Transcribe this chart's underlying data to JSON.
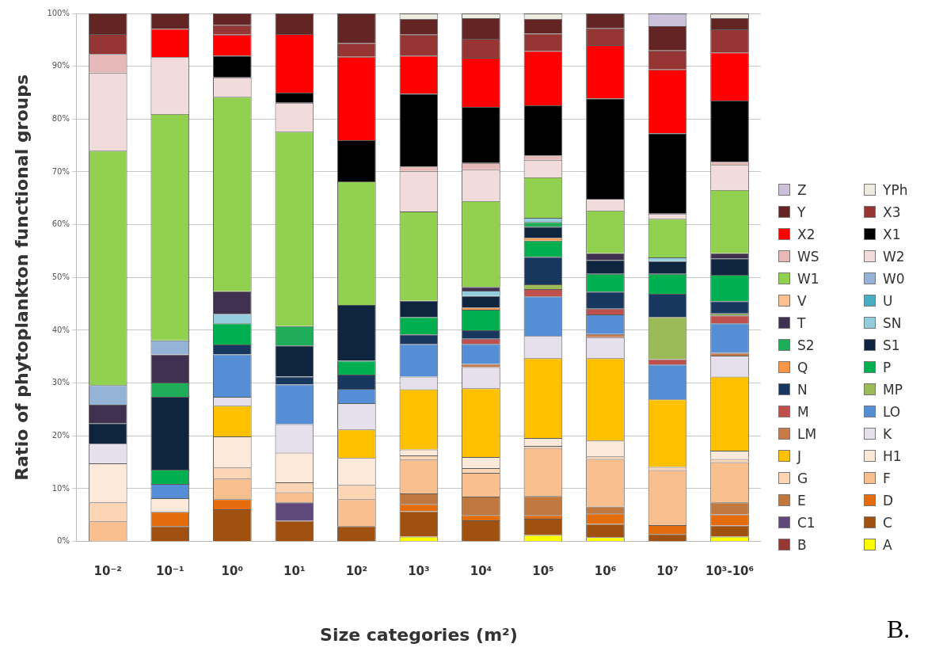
{
  "chart_data": {
    "type": "bar",
    "stacked": true,
    "ylabel": "Ratio of phytoplankton functional groups",
    "xlabel": "Size categories (m²)",
    "categories": [
      "10⁻²",
      "10⁻¹",
      "10⁰",
      "10¹",
      "10²",
      "10³",
      "10⁴",
      "10⁵",
      "10⁶",
      "10⁷",
      "10³-10⁶"
    ],
    "ylim": [
      0,
      100
    ],
    "yticks": [
      {
        "value": 0,
        "label": "0%"
      },
      {
        "value": 10,
        "label": "10%"
      },
      {
        "value": 20,
        "label": "20%"
      },
      {
        "value": 30,
        "label": "30%"
      },
      {
        "value": 40,
        "label": "40%"
      },
      {
        "value": 50,
        "label": "50%"
      },
      {
        "value": 60,
        "label": "60%"
      },
      {
        "value": 70,
        "label": "70%"
      },
      {
        "value": 80,
        "label": "80%"
      },
      {
        "value": 90,
        "label": "90%"
      },
      {
        "value": 100,
        "label": "100%"
      }
    ],
    "grid": "y",
    "legend": "right",
    "annotations": [
      "B."
    ],
    "series": [
      {
        "name": "A",
        "color": "#ffff00",
        "values": [
          0,
          0,
          0,
          0,
          0,
          0.9,
          0,
          1.2,
          0.8,
          0,
          0.9
        ]
      },
      {
        "name": "B",
        "color": "#953735",
        "values": [
          0,
          0,
          0,
          0,
          0,
          0,
          0,
          0,
          0,
          0,
          0
        ]
      },
      {
        "name": "C",
        "color": "#a0500f",
        "values": [
          0,
          2.9,
          6.1,
          3.9,
          2.9,
          4.8,
          4.0,
          3.1,
          2.5,
          1.4,
          2.1
        ]
      },
      {
        "name": "C1",
        "color": "#604a7b",
        "values": [
          0,
          0,
          0,
          3.5,
          0,
          0,
          0,
          0,
          0,
          0,
          0
        ]
      },
      {
        "name": "D",
        "color": "#e46c0a",
        "values": [
          0,
          2.7,
          1.9,
          0,
          0,
          1.4,
          1.0,
          0.7,
          2.0,
          1.7,
          2.1
        ]
      },
      {
        "name": "E",
        "color": "#c0783e",
        "values": [
          0,
          0,
          0,
          0,
          0,
          2.0,
          3.5,
          3.6,
          1.3,
          0,
          2.3
        ]
      },
      {
        "name": "F",
        "color": "#fabf8f",
        "values": [
          3.8,
          0,
          3.9,
          1.9,
          5.1,
          6.4,
          4.5,
          9.1,
          9.0,
          10.4,
          7.6
        ]
      },
      {
        "name": "G",
        "color": "#fcd5b4",
        "values": [
          3.6,
          0,
          2.1,
          1.9,
          2.7,
          0.8,
          0.9,
          0.4,
          0.5,
          0.6,
          0.6
        ]
      },
      {
        "name": "H1",
        "color": "#fde9d9",
        "values": [
          7.4,
          2.6,
          5.9,
          5.6,
          5.1,
          1.1,
          2.1,
          1.5,
          3.0,
          0,
          1.6
        ]
      },
      {
        "name": "J",
        "color": "#ffc000",
        "values": [
          0,
          0,
          5.8,
          0,
          5.4,
          11.4,
          13.0,
          15.1,
          15.6,
          12.8,
          14.0
        ]
      },
      {
        "name": "K",
        "color": "#e6e0ec",
        "values": [
          3.7,
          0,
          1.7,
          5.4,
          5.0,
          2.4,
          4.0,
          4.2,
          4.0,
          0,
          4.0
        ]
      },
      {
        "name": "LM",
        "color": "#c87a4a",
        "values": [
          0,
          0,
          0,
          0,
          0,
          0,
          0.6,
          0,
          0.6,
          0,
          0.5
        ]
      },
      {
        "name": "LO",
        "color": "#558ed5",
        "values": [
          0,
          2.7,
          8.0,
          7.5,
          2.7,
          6.2,
          3.8,
          7.5,
          3.7,
          6.6,
          5.6
        ]
      },
      {
        "name": "M",
        "color": "#c0504d",
        "values": [
          0,
          0,
          0,
          0,
          0,
          0,
          1.0,
          1.4,
          1.1,
          1.0,
          1.5
        ]
      },
      {
        "name": "MP",
        "color": "#9bbb59",
        "values": [
          0,
          0,
          0,
          0,
          0,
          0,
          0,
          0.9,
          0,
          8.0,
          0.4
        ]
      },
      {
        "name": "N",
        "color": "#17375e",
        "values": [
          0,
          0,
          1.9,
          1.5,
          2.7,
          1.8,
          1.6,
          5.2,
          3.2,
          4.4,
          2.3
        ]
      },
      {
        "name": "P",
        "color": "#00b050",
        "values": [
          0,
          2.7,
          4.0,
          0,
          2.6,
          3.3,
          3.9,
          3.1,
          3.4,
          3.8,
          5.0
        ]
      },
      {
        "name": "Q",
        "color": "#f79646",
        "values": [
          0,
          0,
          0,
          0,
          0,
          0,
          0.4,
          0.5,
          0,
          0,
          0
        ]
      },
      {
        "name": "S1",
        "color": "#0f243e",
        "values": [
          3.9,
          13.8,
          0,
          5.9,
          10.6,
          3.1,
          2.2,
          2.1,
          2.6,
          2.4,
          3.1
        ]
      },
      {
        "name": "S2",
        "color": "#1fad5a",
        "values": [
          0,
          2.7,
          0,
          3.7,
          0,
          0,
          0,
          0.9,
          0,
          0,
          0
        ]
      },
      {
        "name": "SN",
        "color": "#93cddd",
        "values": [
          0,
          0,
          1.8,
          0,
          0,
          0,
          1.0,
          0.8,
          0,
          0.7,
          0
        ]
      },
      {
        "name": "T",
        "color": "#403151",
        "values": [
          3.5,
          5.3,
          4.3,
          0,
          0,
          0,
          0.7,
          0,
          1.3,
          0,
          1.0
        ]
      },
      {
        "name": "U",
        "color": "#4bacc6",
        "values": [
          0,
          0,
          0,
          0,
          0,
          0,
          0,
          0,
          0,
          0,
          0
        ]
      },
      {
        "name": "V",
        "color": "#fac090",
        "values": [
          0,
          0,
          0,
          0,
          0,
          0,
          0,
          0,
          0,
          0,
          0
        ]
      },
      {
        "name": "W0",
        "color": "#95b3d7",
        "values": [
          3.7,
          2.7,
          0,
          0,
          0,
          0,
          0,
          0,
          0,
          0,
          0
        ]
      },
      {
        "name": "W1",
        "color": "#92d050",
        "values": [
          44.4,
          42.9,
          36.8,
          36.8,
          23.4,
          16.9,
          16.3,
          7.7,
          8.1,
          7.3,
          12.0
        ]
      },
      {
        "name": "W2",
        "color": "#f2dcdb",
        "values": [
          14.8,
          10.7,
          3.7,
          5.5,
          0,
          7.7,
          6.0,
          3.3,
          2.2,
          1.0,
          4.7
        ]
      },
      {
        "name": "WS",
        "color": "#e6b9b8",
        "values": [
          3.5,
          0,
          0,
          0,
          0,
          0.8,
          1.2,
          0.8,
          0,
          0,
          0.6
        ]
      },
      {
        "name": "X1",
        "color": "#000000",
        "values": [
          0,
          0,
          4.1,
          1.9,
          7.8,
          13.8,
          10.6,
          9.5,
          19.0,
          15.2,
          11.6
        ]
      },
      {
        "name": "X2",
        "color": "#ff0000",
        "values": [
          0,
          5.4,
          4.0,
          11.1,
          15.8,
          7.2,
          9.3,
          10.3,
          10.1,
          12.1,
          9.1
        ]
      },
      {
        "name": "X3",
        "color": "#963634",
        "values": [
          3.8,
          0,
          1.8,
          0,
          2.6,
          4.0,
          3.6,
          3.3,
          3.2,
          3.6,
          4.4
        ]
      },
      {
        "name": "Y",
        "color": "#632523",
        "values": [
          3.9,
          2.9,
          2.2,
          3.9,
          5.6,
          3.0,
          3.9,
          2.8,
          2.8,
          4.6,
          2.1
        ]
      },
      {
        "name": "YPh",
        "color": "#eeece1",
        "values": [
          0,
          0,
          0,
          0,
          0,
          1.0,
          0.9,
          1.0,
          0,
          0,
          0.9
        ]
      },
      {
        "name": "Z",
        "color": "#ccc1da",
        "values": [
          0,
          0,
          0,
          0,
          0,
          0,
          0,
          0,
          0,
          2.4,
          0
        ]
      }
    ]
  }
}
